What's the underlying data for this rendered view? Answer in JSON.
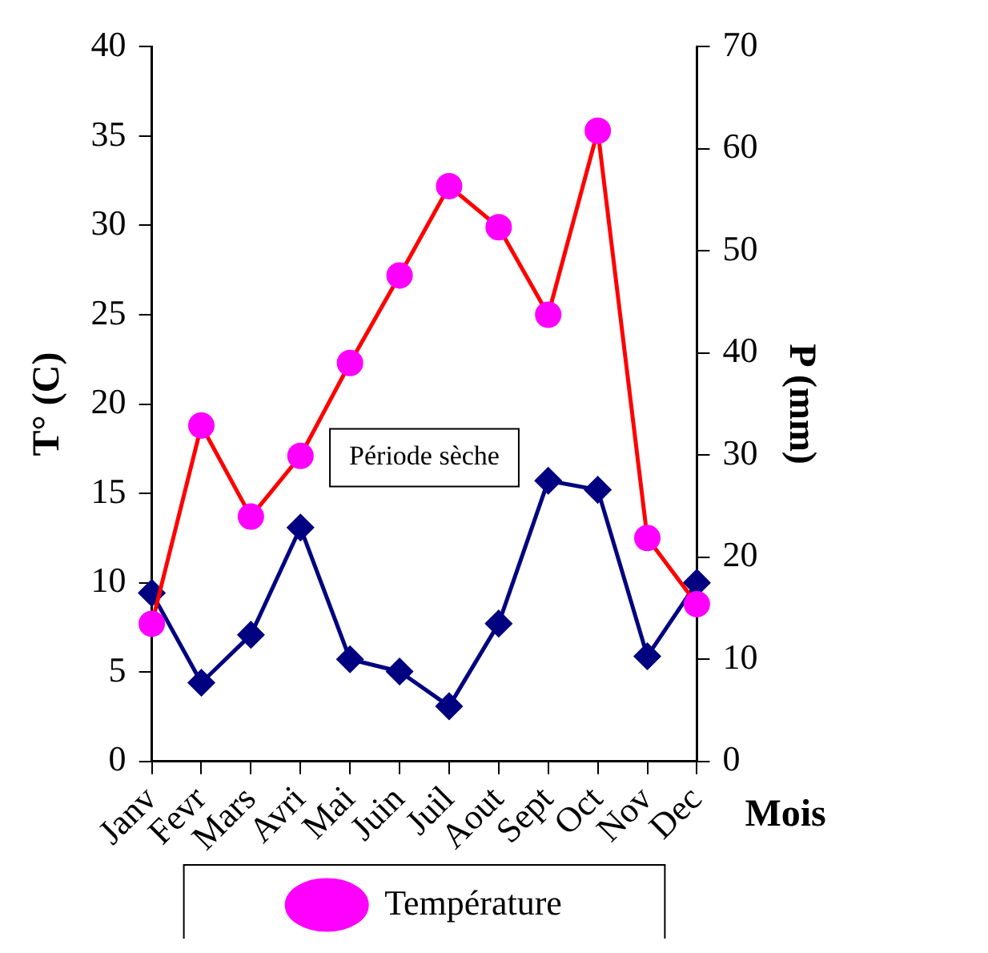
{
  "chart_data": {
    "type": "line",
    "xlabel": "Mois",
    "ylabel": "T° (C)",
    "y2label": "P (mm)",
    "categories": [
      "Janv",
      "Fevr",
      "Mars",
      "Avri",
      "Mai",
      "Juin",
      "Juil",
      "Aout",
      "Sept",
      "Oct",
      "Nov",
      "Dec"
    ],
    "series": [
      {
        "name": "Température",
        "color": "#ff0000",
        "colors": [
          "#ff00ff",
          "#ff00ff",
          "#ff00ff",
          "#ff00ff",
          "#ff00ff",
          "#ff00ff",
          "#ff00ff",
          "#ff00ff",
          "#ff00ff",
          "#ff00ff",
          "#ff00ff",
          "#ff00ff"
        ],
        "marker": "circle",
        "values": [
          7.7,
          18.8,
          13.7,
          17.1,
          22.3,
          27.2,
          32.2,
          29.9,
          25.0,
          35.3,
          12.5,
          8.8
        ]
      },
      {
        "color": "#000080",
        "marker": "diamond",
        "axis": "y2",
        "values": [
          16.5,
          7.7,
          12.4,
          22.9,
          10.0,
          8.8,
          5.4,
          13.5,
          27.5,
          26.6,
          10.3,
          17.5
        ]
      }
    ],
    "ylim": [
      0,
      40
    ],
    "yticks": [
      0,
      5,
      10,
      15,
      20,
      25,
      30,
      35,
      40
    ],
    "y2lim": [
      0,
      70
    ],
    "y2ticks": [
      0,
      10,
      20,
      30,
      40,
      50,
      60,
      70
    ],
    "annotations": [
      "Période sèche"
    ],
    "grid": false,
    "legend": "bottom"
  }
}
